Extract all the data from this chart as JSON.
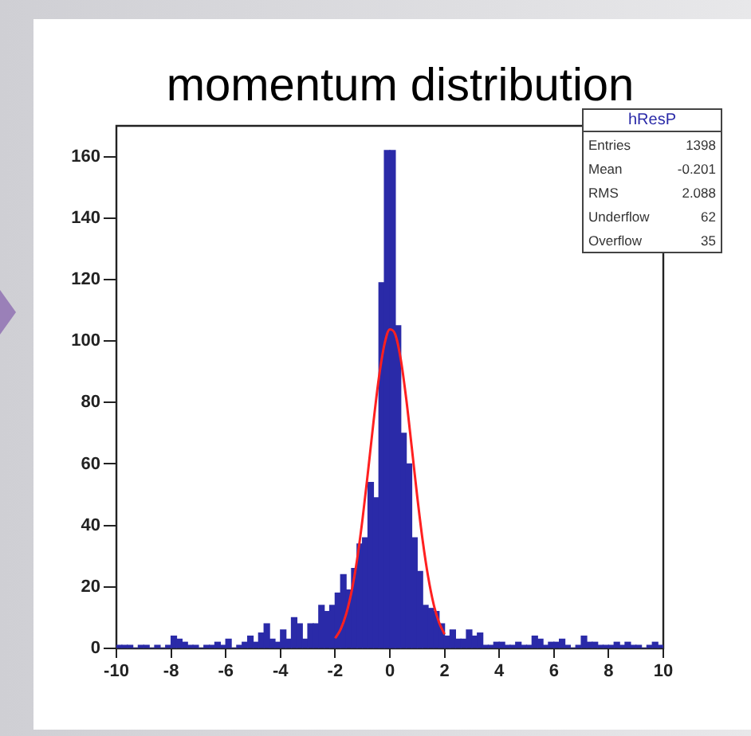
{
  "chart_data": {
    "type": "histogram",
    "title": "momentum distribution",
    "bins": [
      -10,
      -9.8,
      -9.6,
      -9.4,
      -9.2,
      -9,
      -8.8,
      -8.6,
      -8.4,
      -8.2,
      -8,
      -7.8,
      -7.6,
      -7.4,
      -7.2,
      -7,
      -6.8,
      -6.6,
      -6.4,
      -6.2,
      -6,
      -5.8,
      -5.6,
      -5.4,
      -5.2,
      -5,
      -4.8,
      -4.6,
      -4.4,
      -4.2,
      -4,
      -3.8,
      -3.6,
      -3.4,
      -3.2,
      -3,
      -2.8,
      -2.6,
      -2.4,
      -2.2,
      -2,
      -1.8,
      -1.6,
      -1.4,
      -1.2,
      -1,
      -0.8,
      -0.6,
      -0.4,
      -0.2,
      0,
      0.2,
      0.4,
      0.6,
      0.8,
      1,
      1.2,
      1.4,
      1.6,
      1.8,
      2,
      2.2,
      2.4,
      2.6,
      2.8,
      3,
      3.2,
      3.4,
      3.6,
      3.8,
      4,
      4.2,
      4.4,
      4.6,
      4.8,
      5,
      5.2,
      5.4,
      5.6,
      5.8,
      6,
      6.2,
      6.4,
      6.6,
      6.8,
      7,
      7.2,
      7.4,
      7.6,
      7.8,
      8,
      8.2,
      8.4,
      8.6,
      8.8,
      9,
      9.2,
      9.4,
      9.6,
      9.8,
      10
    ],
    "series": [
      {
        "type": "histogram",
        "color": "#2a2aa8",
        "values": [
          1,
          1,
          1,
          0,
          1,
          1,
          0,
          1,
          0,
          1,
          4,
          3,
          2,
          1,
          1,
          0,
          1,
          1,
          2,
          1,
          3,
          0,
          1,
          2,
          4,
          2,
          5,
          8,
          3,
          2,
          6,
          3,
          10,
          8,
          3,
          8,
          8,
          14,
          12,
          14,
          18,
          24,
          19,
          26,
          34,
          36,
          54,
          49,
          119,
          162,
          162,
          105,
          70,
          60,
          36,
          25,
          14,
          13,
          12,
          8,
          4,
          6,
          3,
          3,
          6,
          4,
          5,
          1,
          1,
          2,
          2,
          1,
          1,
          2,
          1,
          1,
          4,
          3,
          1,
          2,
          2,
          3,
          1,
          0,
          1,
          4,
          2,
          2,
          1,
          1,
          1,
          2,
          1,
          2,
          1,
          1,
          0,
          1,
          2,
          1
        ]
      },
      {
        "type": "line",
        "color": "#ff2020",
        "x": [
          -2,
          -1.8,
          -1.6,
          -1.4,
          -1.2,
          -1,
          -0.8,
          -0.6,
          -0.4,
          -0.2,
          0,
          0.2,
          0.4,
          0.6,
          0.8,
          1,
          1.2,
          1.4,
          1.6,
          1.8,
          2
        ],
        "values": [
          3.3,
          6.2,
          11.1,
          18.5,
          28.8,
          42,
          57.4,
          73.5,
          88.1,
          98.8,
          103.8,
          102.1,
          94,
          81.1,
          65.5,
          49.5,
          35.1,
          23.3,
          14.4,
          8.4,
          4.6
        ]
      }
    ],
    "xlim": [
      -10,
      10
    ],
    "xticks": [
      -10,
      -8,
      -6,
      -4,
      -2,
      0,
      2,
      4,
      6,
      8,
      10
    ],
    "ylim": [
      0,
      170
    ],
    "yticks": [
      0,
      20,
      40,
      60,
      80,
      100,
      120,
      140,
      160
    ],
    "grid": false,
    "legend": false,
    "marker": "none",
    "annotations": [
      "hResP",
      "Entries 1398",
      "Mean -0.201",
      "RMS 2.088",
      "Underflow 62",
      "Overflow 35"
    ]
  }
}
